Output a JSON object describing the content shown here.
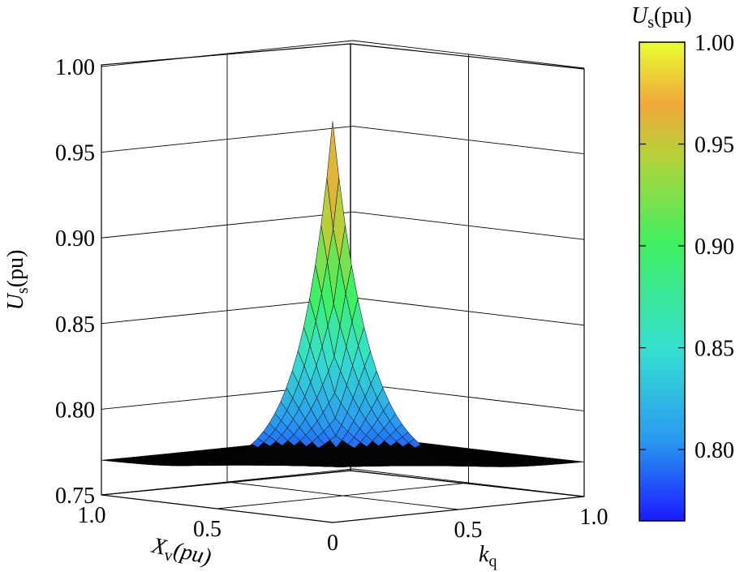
{
  "chart_data": {
    "type": "surface3d",
    "title": "",
    "xlabel": {
      "main": "X",
      "sub": "v",
      "unit": "(pu)"
    },
    "ylabel": {
      "main": "k",
      "sub": "q",
      "unit": ""
    },
    "zlabel": {
      "main": "U",
      "sub": "s",
      "unit": "(pu)"
    },
    "x_ticks": [
      "1.0",
      "0.5",
      "0"
    ],
    "y_ticks": [
      "0.5",
      "1.0"
    ],
    "z_ticks": [
      "1.00",
      "0.95",
      "0.90",
      "0.85",
      "0.80",
      "0.75"
    ],
    "xlim": [
      0,
      1
    ],
    "ylim": [
      0,
      1
    ],
    "zlim": [
      0.75,
      1.0
    ],
    "grid": true,
    "surface": {
      "peak": {
        "x": 0,
        "y": 0,
        "z": 0.984
      },
      "corner_values": [
        {
          "x": 0,
          "y": 1,
          "z": 0.781
        },
        {
          "x": 1,
          "y": 0,
          "z": 0.776
        },
        {
          "x": 1,
          "y": 1,
          "z": 0.772
        }
      ]
    },
    "colorbar": {
      "label": {
        "main": "U",
        "sub": "s",
        "unit": "(pu)"
      },
      "ticks": [
        "1.00",
        "0.95",
        "0.90",
        "0.85",
        "0.80"
      ],
      "range": [
        0.765,
        1.0
      ],
      "colors": [
        "#1a1aff",
        "#2a9af0",
        "#35e0d0",
        "#40f060",
        "#b4d23a",
        "#f0a83a",
        "#e8ff30"
      ]
    }
  }
}
